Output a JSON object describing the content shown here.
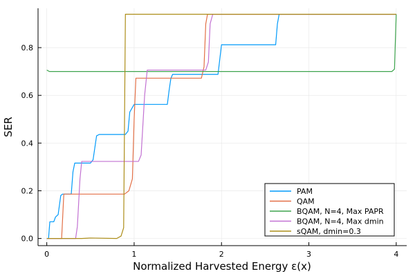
{
  "chart_data": {
    "type": "line",
    "title": "",
    "xlabel": "Normalized Harvested Energy ε(x)",
    "ylabel": "SER",
    "xlim": [
      -0.1,
      4.12
    ],
    "ylim": [
      -0.03,
      0.965
    ],
    "xticks": [
      0,
      1,
      2,
      3,
      4
    ],
    "xtick_labels": [
      "0",
      "1",
      "2",
      "3",
      "4"
    ],
    "yticks": [
      0.0,
      0.2,
      0.4,
      0.6,
      0.8
    ],
    "ytick_labels": [
      "0.0",
      "0.2",
      "0.4",
      "0.6",
      "0.8"
    ],
    "grid": true,
    "legend_position": "bottom-right",
    "series": [
      {
        "name": "PAM",
        "color": "#009AFA",
        "x": [
          0.0,
          0.02,
          0.035,
          0.08,
          0.1,
          0.13,
          0.16,
          0.18,
          0.28,
          0.3,
          0.32,
          0.5,
          0.53,
          0.57,
          0.6,
          0.9,
          0.93,
          0.95,
          1.0,
          1.38,
          1.4,
          1.42,
          1.44,
          1.96,
          1.98,
          2.0,
          2.62,
          2.64,
          2.66,
          4.0
        ],
        "y": [
          0.0,
          0.0,
          0.07,
          0.07,
          0.09,
          0.1,
          0.18,
          0.186,
          0.186,
          0.28,
          0.316,
          0.316,
          0.33,
          0.43,
          0.436,
          0.436,
          0.45,
          0.53,
          0.562,
          0.562,
          0.62,
          0.67,
          0.688,
          0.688,
          0.75,
          0.812,
          0.812,
          0.9,
          0.94,
          0.94
        ]
      },
      {
        "name": "QAM",
        "color": "#E26F46",
        "x": [
          0.0,
          0.17,
          0.195,
          0.89,
          0.94,
          0.98,
          1.0,
          1.02,
          1.77,
          1.8,
          1.82,
          1.84,
          4.0
        ],
        "y": [
          0.0,
          0.0,
          0.186,
          0.186,
          0.2,
          0.25,
          0.5,
          0.672,
          0.672,
          0.72,
          0.9,
          0.94,
          0.94
        ]
      },
      {
        "name": "BQAM, N=4, Max PAPR",
        "color": "#3DA44D",
        "x": [
          0.0,
          0.03,
          3.95,
          3.98,
          4.0
        ],
        "y": [
          0.706,
          0.7,
          0.7,
          0.71,
          0.94
        ]
      },
      {
        "name": "BQAM, N=4, Max dmin",
        "color": "#C271D2",
        "x": [
          0.0,
          0.33,
          0.35,
          0.38,
          0.4,
          1.05,
          1.08,
          1.12,
          1.15,
          1.82,
          1.85,
          1.87,
          1.9,
          4.0
        ],
        "y": [
          0.0,
          0.0,
          0.05,
          0.25,
          0.323,
          0.323,
          0.35,
          0.6,
          0.706,
          0.706,
          0.74,
          0.9,
          0.94,
          0.94
        ]
      },
      {
        "name": "sQAM, dmin=0.3",
        "color": "#AC8D18",
        "x": [
          0.0,
          0.4,
          0.5,
          0.8,
          0.85,
          0.88,
          0.9,
          4.0
        ],
        "y": [
          0.0,
          0.0,
          0.002,
          0.0,
          0.01,
          0.045,
          0.94,
          0.94
        ]
      }
    ]
  }
}
